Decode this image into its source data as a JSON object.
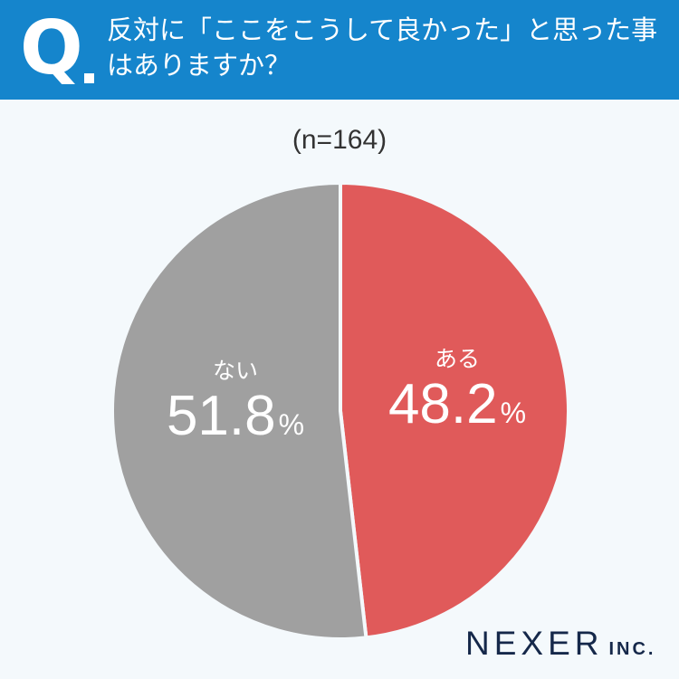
{
  "header": {
    "q_label": "Q",
    "question": "反対に「ここをこうして良かった」と思った事はありますか？"
  },
  "sample_size": "(n=164)",
  "chart_data": {
    "type": "pie",
    "title": "反対に「ここをこうして良かった」と思った事はありますか？",
    "subtitle": "(n=164)",
    "categories": [
      "ある",
      "ない"
    ],
    "values": [
      48.2,
      51.8
    ],
    "unit": "%",
    "colors": [
      "#e05a5a",
      "#a0a0a0"
    ],
    "start_angle": "12 o'clock, clockwise",
    "legend": "none (labels inside slices)"
  },
  "slices": [
    {
      "label": "ある",
      "value": "48.2",
      "unit": "%",
      "color": "#e05a5a"
    },
    {
      "label": "ない",
      "value": "51.8",
      "unit": "%",
      "color": "#a0a0a0"
    }
  ],
  "logo": {
    "main": "NEXER",
    "suffix": "INC."
  }
}
